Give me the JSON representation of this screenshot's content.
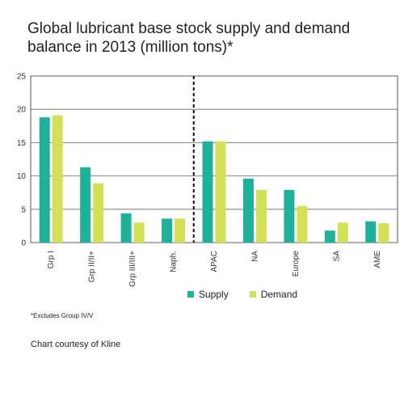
{
  "chart_data": {
    "type": "bar",
    "title": "Global lubricant base stock supply and demand balance in 2013 (million tons)*",
    "categories": [
      "Grp I",
      "Grp II/II+",
      "Grp III/III+",
      "Naph.",
      "APAC",
      "NA",
      "Europe",
      "SA",
      "AME"
    ],
    "series": [
      {
        "name": "Supply",
        "color": "#20b19b",
        "values": [
          18.8,
          11.3,
          4.4,
          3.6,
          15.2,
          9.6,
          7.9,
          1.8,
          3.2
        ]
      },
      {
        "name": "Demand",
        "color": "#d4e157",
        "values": [
          19.1,
          8.9,
          3.0,
          3.6,
          15.2,
          7.9,
          5.5,
          3.0,
          2.9
        ]
      }
    ],
    "ylim": [
      0,
      25
    ],
    "yticks": [
      0,
      5,
      10,
      15,
      20,
      25
    ],
    "grid": true,
    "divider_after_index": 3,
    "legend_position": "bottom"
  },
  "footnote": "*Excludes Group IV/V",
  "courtesy": "Chart courtesy of Kline"
}
